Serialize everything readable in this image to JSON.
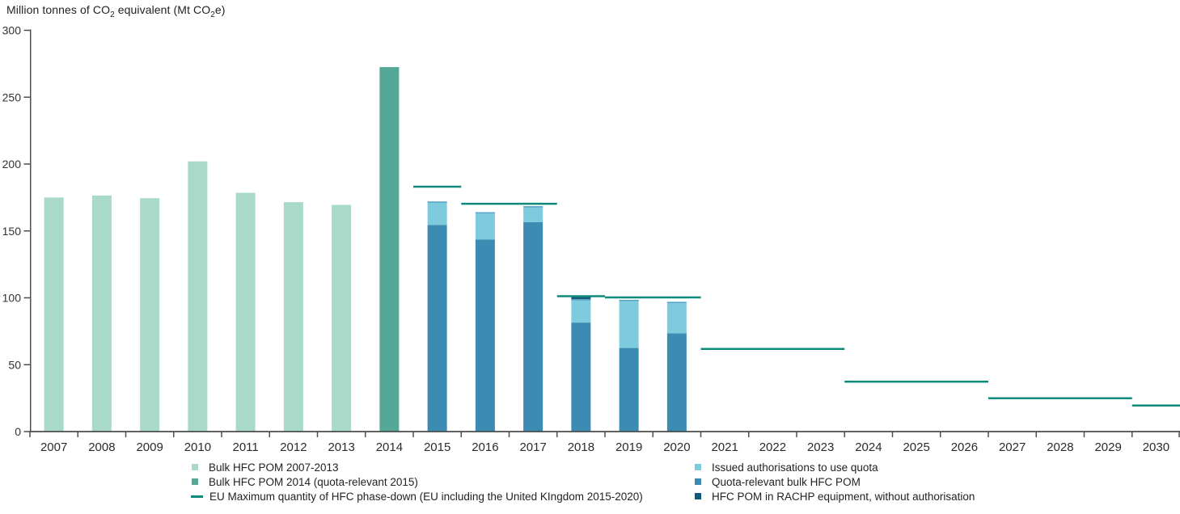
{
  "title_parts": [
    {
      "text": "Million tonnes of CO"
    },
    {
      "text": "2",
      "sub": true
    },
    {
      "text": " equivalent (Mt CO"
    },
    {
      "text": "2",
      "sub": true
    },
    {
      "text": "e)"
    }
  ],
  "chart_data": {
    "type": "bar",
    "title": "Million tonnes of CO2 equivalent (Mt CO2e)",
    "xlabel": "",
    "ylabel": "Mt CO2e",
    "ylim": [
      0,
      300
    ],
    "yticks": [
      0,
      50,
      100,
      150,
      200,
      250,
      300
    ],
    "grid": false,
    "legend_position": "bottom",
    "categories": [
      "2007",
      "2008",
      "2009",
      "2010",
      "2011",
      "2012",
      "2013",
      "2014",
      "2015",
      "2016",
      "2017",
      "2018",
      "2019",
      "2020",
      "2021",
      "2022",
      "2023",
      "2024",
      "2025",
      "2026",
      "2027",
      "2028",
      "2029",
      "2030"
    ],
    "bar_series": [
      {
        "name": "Bulk HFC POM 2007-2013",
        "color": "#a9d9c8",
        "values": {
          "2007": 175,
          "2008": 176.5,
          "2009": 174.5,
          "2010": 202,
          "2011": 178.5,
          "2012": 171.5,
          "2013": 169.5
        }
      },
      {
        "name": "Bulk HFC POM 2014 (quota-relevant 2015)",
        "color": "#55a897",
        "values": {
          "2014": 272.5
        }
      },
      {
        "name": "Quota-relevant bulk HFC POM",
        "color": "#3b8bb2",
        "values": {
          "2015": 154.5,
          "2016": 143.5,
          "2017": 156.5,
          "2018": 81.5,
          "2019": 62.5,
          "2020": 73.5
        }
      },
      {
        "name": "Issued authorisations to use quota",
        "color": "#7ecbde",
        "edge_color": "#5da3c6",
        "values": {
          "2015": 17.5,
          "2016": 20.5,
          "2017": 12,
          "2018": 17.5,
          "2019": 36,
          "2020": 23.5
        }
      },
      {
        "name": "HFC POM in RACHP equipment, without authorisation",
        "color": "#17587d",
        "values": {
          "2018": 2.5
        }
      }
    ],
    "line_series": {
      "name": "EU Maximum quantity of HFC phase-down (EU including the United KIngdom 2015-2020)",
      "color": "#0e8a7c",
      "segments": [
        {
          "years": [
            "2015"
          ],
          "value": 183.1
        },
        {
          "years": [
            "2016",
            "2017"
          ],
          "value": 170.3
        },
        {
          "years": [
            "2018"
          ],
          "value": 101.2
        },
        {
          "years": [
            "2019",
            "2020"
          ],
          "value": 100.3
        },
        {
          "years": [
            "2021",
            "2022",
            "2023"
          ],
          "value": 61.8
        },
        {
          "years": [
            "2024",
            "2025",
            "2026"
          ],
          "value": 37.3
        },
        {
          "years": [
            "2027",
            "2028",
            "2029"
          ],
          "value": 24.9
        },
        {
          "years": [
            "2030"
          ],
          "value": 19.5
        }
      ]
    },
    "axis_color": "#4d4d4d"
  },
  "legend": {
    "left": [
      {
        "label": "Bulk HFC POM 2007-2013",
        "swatch": "square",
        "color": "#a9d9c8"
      },
      {
        "label": "Bulk HFC POM 2014 (quota-relevant 2015)",
        "swatch": "square",
        "color": "#55a897"
      },
      {
        "label": "EU Maximum quantity of HFC phase-down (EU including the United KIngdom 2015-2020)",
        "swatch": "line",
        "color": "#0e8a7c"
      }
    ],
    "right": [
      {
        "label": "Issued authorisations to use quota",
        "swatch": "square",
        "color": "#7ecbde"
      },
      {
        "label": "Quota-relevant bulk HFC POM",
        "swatch": "square",
        "color": "#3b8bb2"
      },
      {
        "label": "HFC POM in RACHP equipment, without authorisation",
        "swatch": "square",
        "color": "#17587d"
      }
    ]
  }
}
